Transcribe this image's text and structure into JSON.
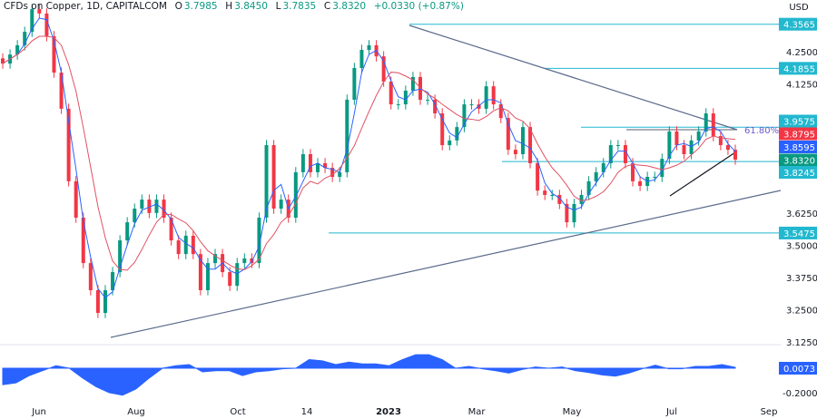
{
  "header": {
    "symbol": "CFDs on Copper, 1D, CAPITALCOM",
    "o_label": "O",
    "o": "3.7985",
    "h_label": "H",
    "h": "3.8450",
    "l_label": "L",
    "l": "3.7835",
    "c_label": "C",
    "c": "3.8320",
    "change": "+0.0330 (+0.87%)"
  },
  "currency": "USD",
  "colors": {
    "up": "#089981",
    "down": "#f23645",
    "ma_fast": "#2962ff",
    "ma_slow": "#e05263",
    "level": "#22b8cf",
    "trend": "#5b6b8c",
    "osc": "#2962ff"
  },
  "chart_data": [
    {
      "type": "candlestick",
      "ylim": [
        3.08,
        4.44
      ],
      "yticks": [
        "4.2500",
        "4.1250",
        "3.6250",
        "3.5000",
        "3.3750",
        "3.2500",
        "3.1250"
      ],
      "xticks": [
        "Jun",
        "Aug",
        "Oct",
        "14",
        "2023",
        "Mar",
        "May",
        "Jul",
        "Sep"
      ],
      "closes": [
        4.204,
        4.239,
        4.275,
        4.327,
        4.415,
        4.398,
        4.31,
        4.169,
        4.029,
        3.748,
        3.607,
        3.431,
        3.326,
        3.238,
        3.326,
        3.396,
        3.519,
        3.589,
        3.642,
        3.677,
        3.625,
        3.677,
        3.607,
        3.519,
        3.466,
        3.537,
        3.466,
        3.326,
        3.431,
        3.466,
        3.396,
        3.343,
        3.431,
        3.449,
        3.431,
        3.607,
        3.888,
        3.642,
        3.677,
        3.607,
        3.783,
        3.853,
        3.783,
        3.818,
        3.8,
        3.765,
        3.783,
        4.064,
        4.187,
        4.257,
        4.275,
        4.232,
        4.134,
        4.046,
        4.046,
        4.099,
        4.152,
        4.064,
        4.064,
        4.011,
        3.888,
        3.906,
        3.958,
        4.046,
        4.046,
        4.029,
        4.116,
        4.046,
        3.993,
        3.87,
        3.853,
        3.958,
        3.818,
        3.712,
        3.695,
        3.695,
        3.66,
        3.589,
        3.66,
        3.695,
        3.748,
        3.783,
        3.818,
        3.888,
        3.888,
        3.818,
        3.748,
        3.73,
        3.765,
        3.765,
        3.835,
        3.941,
        3.888,
        3.853,
        3.906,
        3.941,
        4.011,
        3.923,
        3.888,
        3.87,
        3.832
      ],
      "levels": [
        {
          "value": "4.3565",
          "color": "#22b8cf"
        },
        {
          "value": "4.1855",
          "color": "#22b8cf"
        },
        {
          "value": "3.9575",
          "color": "#22b8cf"
        },
        {
          "value": "3.8795",
          "color": "#f23645"
        },
        {
          "value": "3.8595",
          "color": "#2962ff"
        },
        {
          "value": "3.8320",
          "color": "#089981"
        },
        {
          "value": "3.8245",
          "color": "#22b8cf"
        },
        {
          "value": "3.5475",
          "color": "#22b8cf"
        }
      ],
      "fib_label": "61.80%"
    },
    {
      "type": "area",
      "ylim": [
        -0.26,
        0.16
      ],
      "yticks": [
        "-0.2000"
      ],
      "last_value": "0.0073",
      "values": [
        -0.135,
        -0.12,
        -0.06,
        -0.02,
        0.02,
        0,
        -0.08,
        -0.15,
        -0.2,
        -0.22,
        -0.17,
        -0.08,
        0,
        0.02,
        0.03,
        -0.03,
        -0.02,
        -0.02,
        -0.06,
        -0.03,
        -0.02,
        -0.005,
        0,
        0.07,
        0.06,
        0.03,
        0.05,
        0.035,
        0.035,
        0.02,
        0.07,
        0.11,
        0.11,
        0.07,
        0,
        0.015,
        -0.005,
        -0.02,
        -0.04,
        -0.01,
        0.01,
        0,
        0.01,
        -0.02,
        -0.035,
        -0.055,
        -0.065,
        -0.04,
        -0.005,
        0.025,
        -0.005,
        -0.005,
        0.015,
        0.015,
        0.03,
        0.007
      ]
    }
  ]
}
